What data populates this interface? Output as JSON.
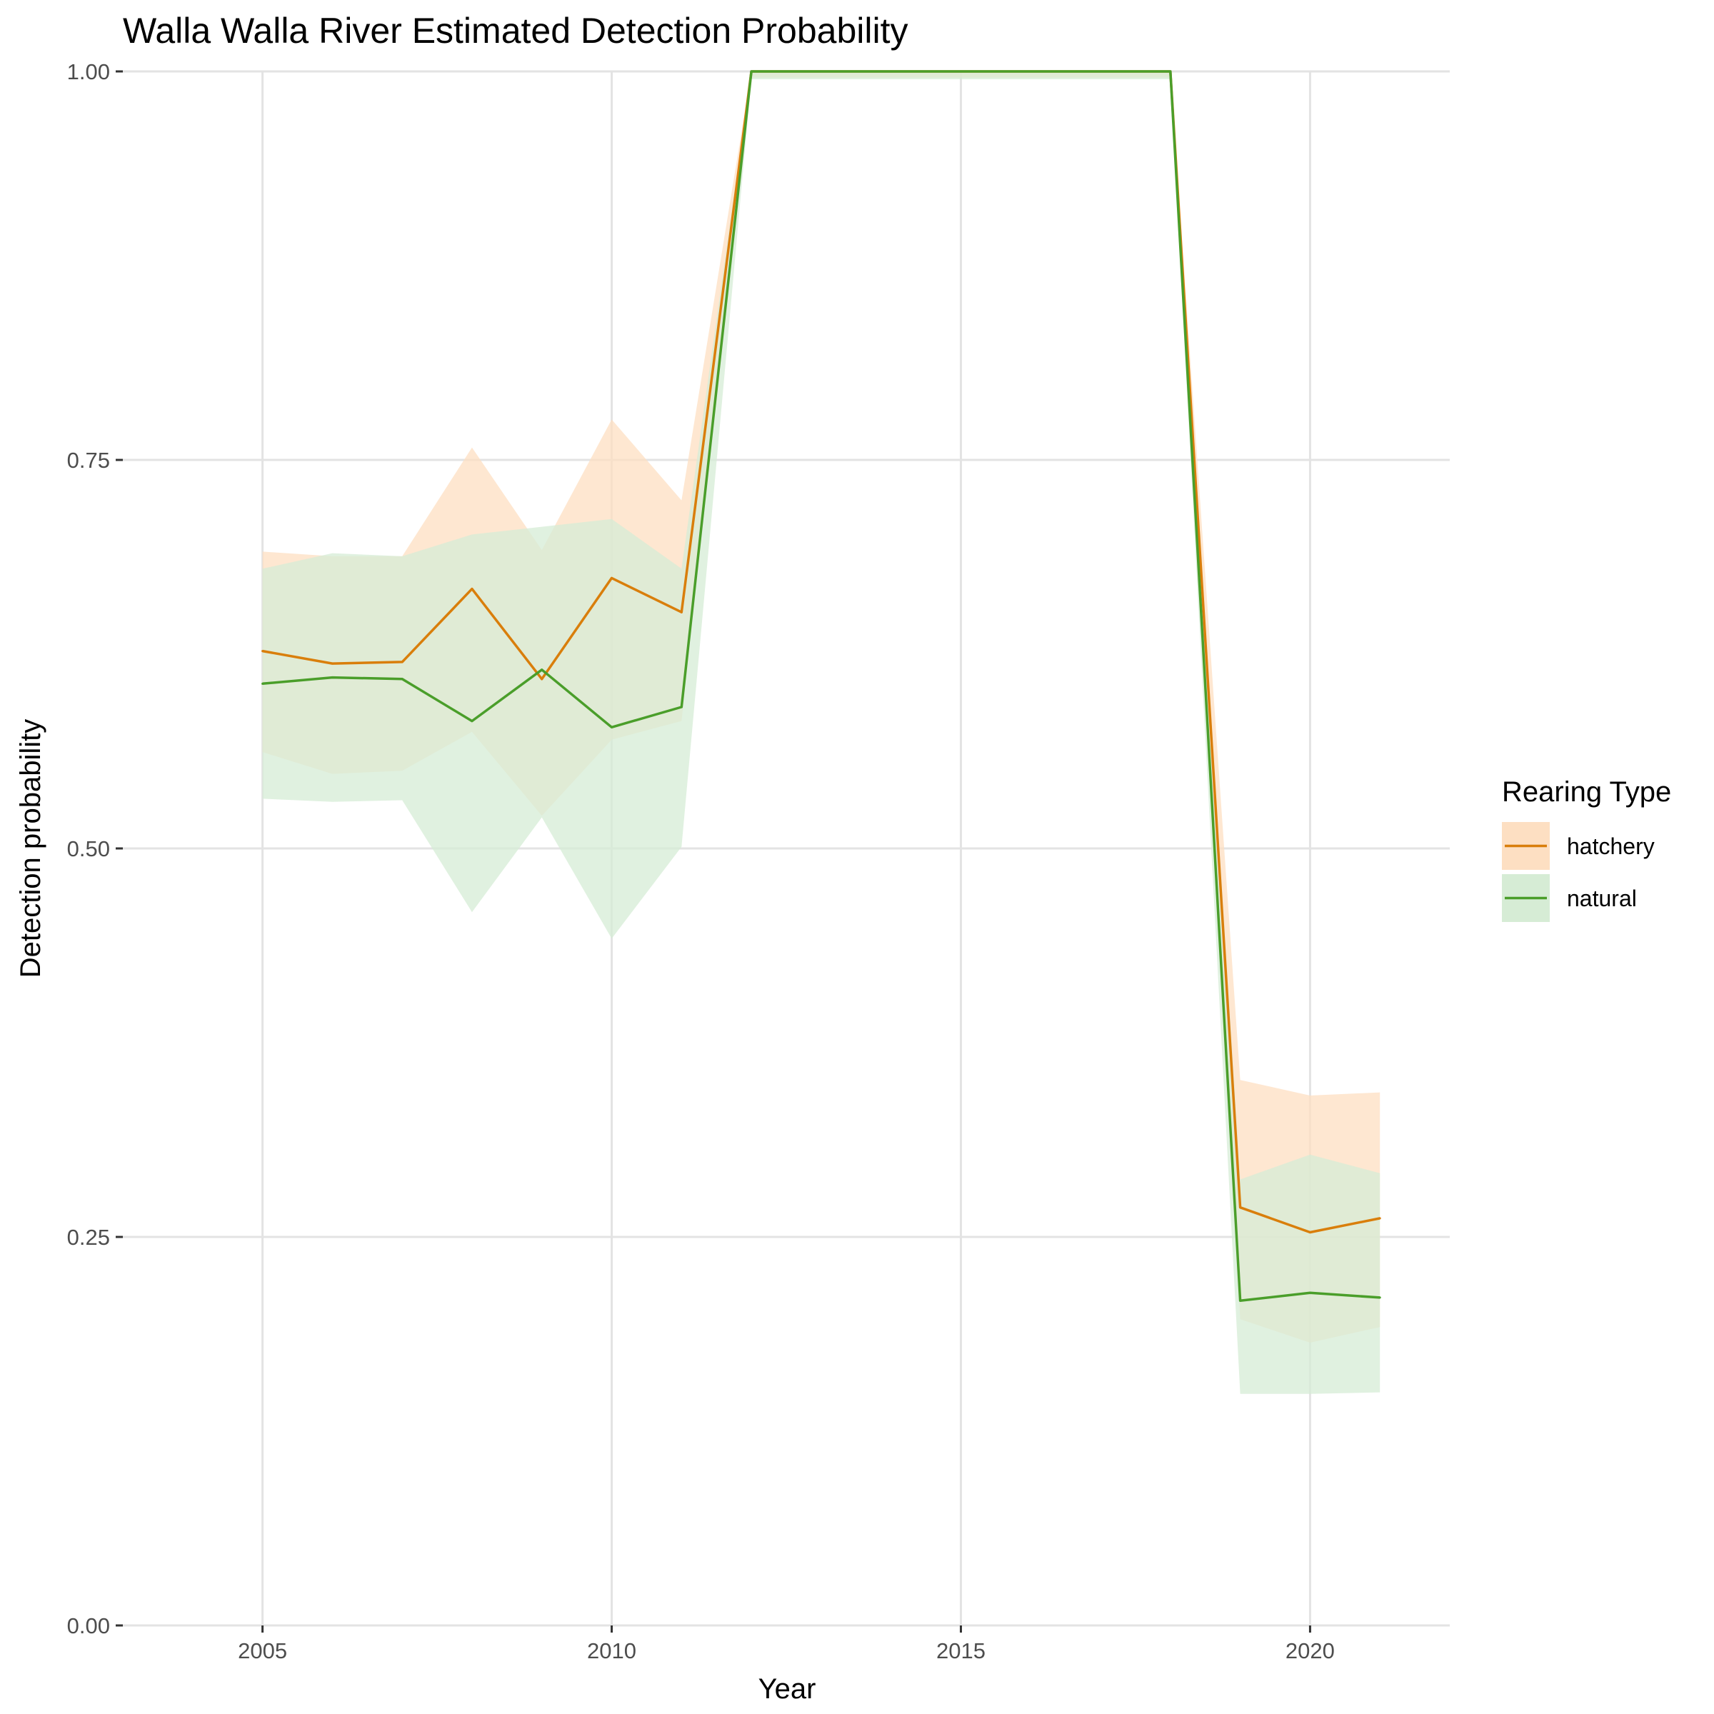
{
  "chart_data": {
    "type": "line",
    "title": "Walla Walla River Estimated Detection Probability",
    "xlabel": "Year",
    "ylabel": "Detection probability",
    "xlim": [
      2003.0,
      2022.0
    ],
    "ylim": [
      0,
      1
    ],
    "x_ticks": [
      2005,
      2010,
      2015,
      2020
    ],
    "y_ticks": [
      "0.00",
      "0.25",
      "0.50",
      "0.75",
      "1.00"
    ],
    "grid": true,
    "legend": {
      "title": "Rearing Type",
      "position": "right"
    },
    "x": [
      2005,
      2006,
      2007,
      2008,
      2009,
      2010,
      2011,
      2012,
      2013,
      2014,
      2015,
      2016,
      2017,
      2018,
      2019,
      2020,
      2021
    ],
    "series": [
      {
        "name": "hatchery",
        "color": "#d97e0b",
        "fill": "#fddfc2",
        "values": [
          0.627,
          0.619,
          0.62,
          0.667,
          0.609,
          0.674,
          0.652,
          1.0,
          1.0,
          1.0,
          1.0,
          1.0,
          1.0,
          1.0,
          0.269,
          0.253,
          0.262
        ],
        "lower": [
          0.562,
          0.548,
          0.55,
          0.575,
          0.521,
          0.57,
          0.582,
          0.996,
          0.996,
          0.996,
          0.996,
          0.996,
          0.996,
          0.996,
          0.197,
          0.182,
          0.192
        ],
        "upper": [
          0.691,
          0.688,
          0.688,
          0.758,
          0.692,
          0.776,
          0.724,
          1.0,
          1.0,
          1.0,
          1.0,
          1.0,
          1.0,
          1.0,
          0.351,
          0.341,
          0.343
        ]
      },
      {
        "name": "natural",
        "color": "#4a9e2a",
        "fill": "#d6ecd5",
        "values": [
          0.606,
          0.61,
          0.609,
          0.582,
          0.615,
          0.578,
          0.591,
          1.0,
          1.0,
          1.0,
          1.0,
          1.0,
          1.0,
          1.0,
          0.209,
          0.214,
          0.211
        ],
        "lower": [
          0.532,
          0.53,
          0.531,
          0.459,
          0.52,
          0.442,
          0.501,
          0.995,
          0.995,
          0.995,
          0.995,
          0.995,
          0.995,
          0.995,
          0.149,
          0.149,
          0.15
        ],
        "upper": [
          0.68,
          0.69,
          0.688,
          0.702,
          0.707,
          0.712,
          0.68,
          1.0,
          1.0,
          1.0,
          1.0,
          1.0,
          1.0,
          1.0,
          0.287,
          0.303,
          0.291
        ]
      }
    ]
  }
}
